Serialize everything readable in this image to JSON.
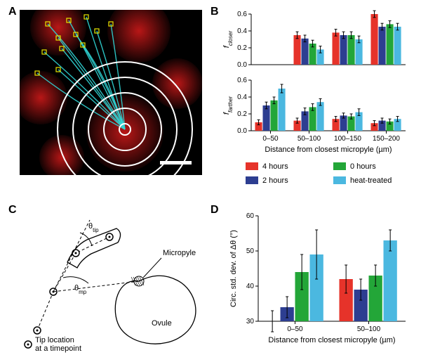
{
  "colors": {
    "r": "#e6332a",
    "b": "#2d3e91",
    "g": "#23a638",
    "c": "#4bb8e0",
    "black": "#000000",
    "micro_red": "#c21818",
    "micro_cyan": "#30d6d6",
    "micro_yellow": "#e6e600"
  },
  "legend": {
    "items": [
      {
        "key": "r",
        "label": "4 hours"
      },
      {
        "key": "b",
        "label": "2 hours"
      },
      {
        "key": "g",
        "label": "0 hours"
      },
      {
        "key": "c",
        "label": "heat-treated"
      }
    ]
  },
  "panel_labels": {
    "A": "A",
    "B": "B",
    "C": "C",
    "D": "D"
  },
  "panelB": {
    "xlabel": "Distance from closest micropyle (µm)",
    "categories": [
      "0–50",
      "50–100",
      "100–150",
      "150–200"
    ],
    "charts": [
      {
        "ylabel": "f_closer",
        "italic": true,
        "ylim": [
          0,
          0.6
        ],
        "yticks": [
          0.0,
          0.2,
          0.4,
          0.6
        ],
        "bars": [
          {
            "cat": 0,
            "series": "r",
            "val": 0.0,
            "err": 0.0
          },
          {
            "cat": 0,
            "series": "b",
            "val": 0.0,
            "err": 0.0
          },
          {
            "cat": 0,
            "series": "g",
            "val": 0.0,
            "err": 0.0
          },
          {
            "cat": 0,
            "series": "c",
            "val": 0.0,
            "err": 0.0
          },
          {
            "cat": 1,
            "series": "r",
            "val": 0.35,
            "err": 0.04
          },
          {
            "cat": 1,
            "series": "b",
            "val": 0.31,
            "err": 0.04
          },
          {
            "cat": 1,
            "series": "g",
            "val": 0.25,
            "err": 0.04
          },
          {
            "cat": 1,
            "series": "c",
            "val": 0.18,
            "err": 0.04
          },
          {
            "cat": 2,
            "series": "r",
            "val": 0.38,
            "err": 0.04
          },
          {
            "cat": 2,
            "series": "b",
            "val": 0.35,
            "err": 0.04
          },
          {
            "cat": 2,
            "series": "g",
            "val": 0.35,
            "err": 0.04
          },
          {
            "cat": 2,
            "series": "c",
            "val": 0.3,
            "err": 0.04
          },
          {
            "cat": 3,
            "series": "r",
            "val": 0.6,
            "err": 0.04
          },
          {
            "cat": 3,
            "series": "b",
            "val": 0.45,
            "err": 0.04
          },
          {
            "cat": 3,
            "series": "g",
            "val": 0.48,
            "err": 0.04
          },
          {
            "cat": 3,
            "series": "c",
            "val": 0.45,
            "err": 0.04
          }
        ]
      },
      {
        "ylabel": "f_farther",
        "italic": true,
        "ylim": [
          0,
          0.6
        ],
        "yticks": [
          0.0,
          0.2,
          0.4,
          0.6
        ],
        "bars": [
          {
            "cat": 0,
            "series": "r",
            "val": 0.1,
            "err": 0.03
          },
          {
            "cat": 0,
            "series": "b",
            "val": 0.3,
            "err": 0.04
          },
          {
            "cat": 0,
            "series": "g",
            "val": 0.36,
            "err": 0.04
          },
          {
            "cat": 0,
            "series": "c",
            "val": 0.5,
            "err": 0.05
          },
          {
            "cat": 1,
            "series": "r",
            "val": 0.12,
            "err": 0.03
          },
          {
            "cat": 1,
            "series": "b",
            "val": 0.23,
            "err": 0.04
          },
          {
            "cat": 1,
            "series": "g",
            "val": 0.28,
            "err": 0.04
          },
          {
            "cat": 1,
            "series": "c",
            "val": 0.34,
            "err": 0.04
          },
          {
            "cat": 2,
            "series": "r",
            "val": 0.14,
            "err": 0.03
          },
          {
            "cat": 2,
            "series": "b",
            "val": 0.18,
            "err": 0.03
          },
          {
            "cat": 2,
            "series": "g",
            "val": 0.17,
            "err": 0.03
          },
          {
            "cat": 2,
            "series": "c",
            "val": 0.22,
            "err": 0.04
          },
          {
            "cat": 3,
            "series": "r",
            "val": 0.09,
            "err": 0.03
          },
          {
            "cat": 3,
            "series": "b",
            "val": 0.12,
            "err": 0.03
          },
          {
            "cat": 3,
            "series": "g",
            "val": 0.11,
            "err": 0.03
          },
          {
            "cat": 3,
            "series": "c",
            "val": 0.14,
            "err": 0.03
          }
        ]
      }
    ]
  },
  "panelD": {
    "xlabel": "Distance from closest micropyle (µm)",
    "ylabel": "Circ. std. dev. of Δθ (°)",
    "categories": [
      "0–50",
      "50–100"
    ],
    "ylim": [
      30,
      60
    ],
    "yticks": [
      30,
      40,
      50,
      60
    ],
    "bars": [
      {
        "cat": 0,
        "series": "r",
        "val": 30,
        "err": 3
      },
      {
        "cat": 0,
        "series": "b",
        "val": 34,
        "err": 3
      },
      {
        "cat": 0,
        "series": "g",
        "val": 44,
        "err": 5
      },
      {
        "cat": 0,
        "series": "c",
        "val": 49,
        "err": 7
      },
      {
        "cat": 1,
        "series": "r",
        "val": 42,
        "err": 4
      },
      {
        "cat": 1,
        "series": "b",
        "val": 39,
        "err": 3
      },
      {
        "cat": 1,
        "series": "g",
        "val": 43,
        "err": 3
      },
      {
        "cat": 1,
        "series": "c",
        "val": 53,
        "err": 3
      }
    ]
  },
  "panelC": {
    "labels": {
      "theta_tip": "θ",
      "theta_tip_sub": "tip",
      "theta_mp": "θ",
      "theta_mp_sub": "mp",
      "micropyle": "Micropyle",
      "ovule": "Ovule",
      "tip": "Tip location\nat a timepoint"
    }
  },
  "panelA": {
    "scale_bar": true
  }
}
